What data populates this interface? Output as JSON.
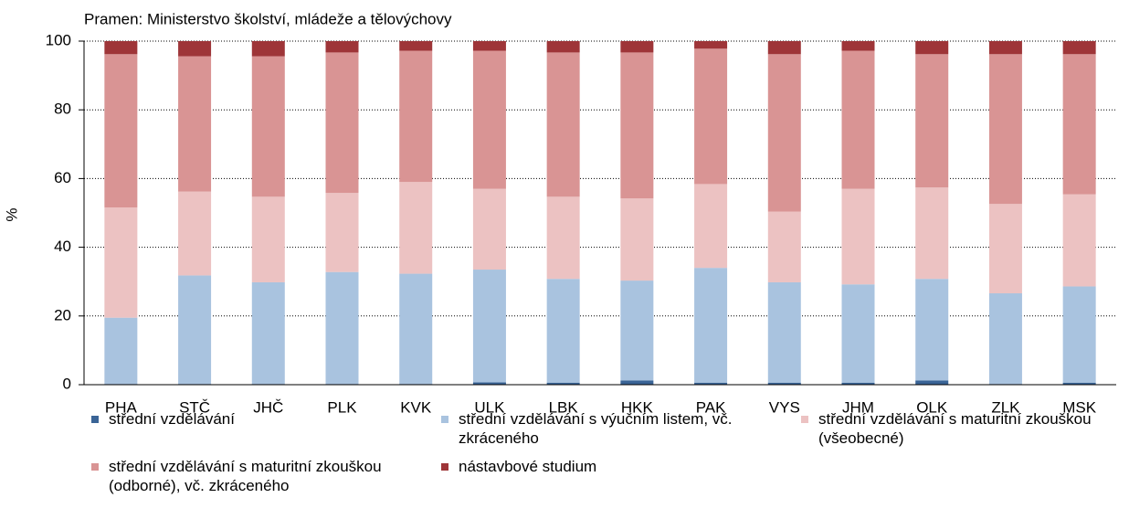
{
  "chart_data": {
    "type": "stacked_bar",
    "subtitle": "Pramen: Ministerstvo školství, mládeže a tělovýchovy",
    "y_label": "%",
    "categories": [
      "PHA",
      "STČ",
      "JHČ",
      "PLK",
      "KVK",
      "ULK",
      "LBK",
      "HKK",
      "PAK",
      "VYS",
      "JHM",
      "OLK",
      "ZLK",
      "MSK"
    ],
    "series": [
      {
        "name": "střední vzdělávání",
        "color": "#3a6496",
        "values": [
          0.2,
          0.2,
          0.2,
          0.2,
          0.2,
          0.7,
          0.6,
          1.2,
          0.6,
          0.6,
          0.6,
          1.2,
          0.2,
          0.6
        ]
      },
      {
        "name": "střední vzdělávání s výučním listem, vč. zkráceného",
        "color": "#a9c3df",
        "values": [
          19.3,
          31.6,
          29.6,
          32.6,
          32.1,
          32.8,
          30.2,
          29.1,
          33.4,
          29.2,
          28.6,
          29.6,
          26.4,
          28.0
        ]
      },
      {
        "name": "střední vzdělávání s maturitní zkouškou (všeobecné)",
        "color": "#ecc2c2",
        "values": [
          32.1,
          24.4,
          24.9,
          23.0,
          26.7,
          23.5,
          23.9,
          23.9,
          24.4,
          20.6,
          27.8,
          26.6,
          26.0,
          26.8
        ]
      },
      {
        "name": "střední vzdělávání s maturitní zkouškou (odborné), vč. zkráceného",
        "color": "#d99494",
        "values": [
          44.6,
          39.4,
          40.9,
          40.9,
          38.2,
          40.2,
          42.0,
          42.5,
          39.4,
          45.8,
          40.2,
          38.8,
          43.6,
          40.8
        ]
      },
      {
        "name": "nástavbové studium",
        "color": "#9e3538",
        "values": [
          3.8,
          4.4,
          4.4,
          3.3,
          2.8,
          2.8,
          3.3,
          3.3,
          2.2,
          3.8,
          2.8,
          3.8,
          3.8,
          3.8
        ]
      }
    ],
    "ylim": [
      0,
      100
    ],
    "yticks": [
      0,
      20,
      40,
      60,
      80,
      100
    ],
    "grid": true
  }
}
